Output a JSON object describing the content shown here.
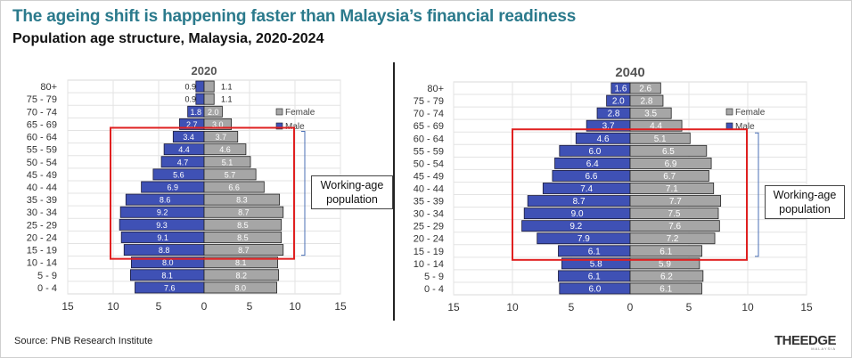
{
  "title": "The ageing shift is happening faster than Malaysia’s financial readiness",
  "subtitle": "Population age structure, Malaysia, 2020-2024",
  "source": "Source: PNB Research Institute",
  "logo": "THEEDGE",
  "logo_sub": "MALAYSIA",
  "colors": {
    "male": "#3f51b5",
    "female": "#a6a6a6",
    "highlight": "#e02020",
    "title": "#2b7a8c"
  },
  "chart_data": [
    {
      "type": "bar",
      "orientation": "horizontal-population-pyramid",
      "title": "2020",
      "categories": [
        "80+",
        "75 - 79",
        "70 - 74",
        "65 - 69",
        "60 - 64",
        "55 - 59",
        "50 - 54",
        "45 - 49",
        "40 - 44",
        "35 - 39",
        "30 - 34",
        "25 - 29",
        "20 - 24",
        "15 - 19",
        "10 - 14",
        "5 - 9",
        "0 - 4"
      ],
      "series": [
        {
          "name": "Female",
          "values": [
            1.1,
            1.1,
            2.0,
            3.0,
            3.7,
            4.6,
            5.1,
            5.7,
            6.6,
            8.3,
            8.7,
            8.5,
            8.5,
            8.7,
            8.1,
            8.2,
            8.0
          ]
        },
        {
          "name": "Male",
          "values": [
            0.9,
            0.9,
            1.8,
            2.7,
            3.4,
            4.4,
            4.7,
            5.6,
            6.9,
            8.6,
            9.2,
            9.3,
            9.1,
            8.8,
            8.0,
            8.1,
            7.6
          ]
        }
      ],
      "tick_labels": [
        "15",
        "10",
        "5",
        "0",
        "5",
        "10",
        "15"
      ],
      "xlim": [
        -15,
        15
      ],
      "grid": true,
      "legend": "right",
      "annotation": "Working-age population",
      "highlight_range": [
        "60 - 64",
        "15 - 19"
      ]
    },
    {
      "type": "bar",
      "orientation": "horizontal-population-pyramid",
      "title": "2040",
      "categories": [
        "80+",
        "75 - 79",
        "70 - 74",
        "65 - 69",
        "60 - 64",
        "55 - 59",
        "50 - 54",
        "45 - 49",
        "40 - 44",
        "35 - 39",
        "30 - 34",
        "25 - 29",
        "20 - 24",
        "15 - 19",
        "10 - 14",
        "5 - 9",
        "0 - 4"
      ],
      "series": [
        {
          "name": "Female",
          "values": [
            2.6,
            2.8,
            3.5,
            4.4,
            5.1,
            6.5,
            6.9,
            6.7,
            7.1,
            7.7,
            7.5,
            7.6,
            7.2,
            6.1,
            5.9,
            6.2,
            6.1
          ]
        },
        {
          "name": "Male",
          "values": [
            1.6,
            2.0,
            2.8,
            3.7,
            4.6,
            6.0,
            6.4,
            6.6,
            7.4,
            8.7,
            9.0,
            9.2,
            7.9,
            6.1,
            5.8,
            6.1,
            6.0
          ]
        }
      ],
      "tick_labels": [
        "15",
        "10",
        "5",
        "0",
        "5",
        "10",
        "15"
      ],
      "xlim": [
        -15,
        15
      ],
      "grid": true,
      "legend": "right",
      "annotation": "Working-age population",
      "highlight_range": [
        "60 - 64",
        "15 - 19"
      ]
    }
  ]
}
